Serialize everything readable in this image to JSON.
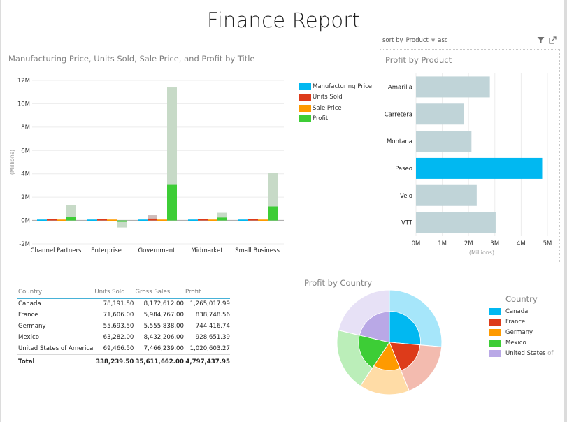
{
  "report": {
    "title": "Finance Report"
  },
  "colors": {
    "manufacturing_price": "#01B8F1",
    "units_sold": "#DD3B1A",
    "sale_price": "#FE9A00",
    "profit": "#3DCD36",
    "usa": "#B9A8E6",
    "highlight_bg_profit": "#C7DAC7",
    "highlight_bg_units": "#C9B4B1",
    "product_bar": "#C0D4D8",
    "product_selected": "#01B8F1"
  },
  "sort_bar": {
    "prefix": "sort by",
    "field": "Product",
    "order": "asc"
  },
  "icons": {
    "filter": "filter-icon",
    "focus": "focus-mode-icon"
  },
  "table": {
    "columns": [
      "Country",
      "Units Sold",
      "Gross Sales",
      "Profit"
    ],
    "rows": [
      [
        "Canada",
        "78,191.50",
        "8,172,612.00",
        "1,265,017.99"
      ],
      [
        "France",
        "71,606.00",
        "5,984,767.00",
        "838,748.56"
      ],
      [
        "Germany",
        "55,693.50",
        "5,555,838.00",
        "744,416.74"
      ],
      [
        "Mexico",
        "63,282.00",
        "8,432,206.00",
        "928,651.39"
      ],
      [
        "United States of America",
        "69,466.50",
        "7,466,239.00",
        "1,020,603.27"
      ]
    ],
    "total": [
      "Total",
      "338,239.50",
      "35,611,662.00",
      "4,797,437.95"
    ]
  },
  "chart_data": [
    {
      "id": "by-title",
      "type": "bar",
      "title": "Manufacturing Price, Units Sold, Sale Price, and Profit by Title",
      "xlabel": "",
      "ylabel": "(Millions)",
      "ylim": [
        -2,
        12
      ],
      "yticks": [
        -2,
        0,
        2,
        4,
        6,
        8,
        10,
        12
      ],
      "ytick_suffix": "M",
      "grid": true,
      "legend": "right",
      "categories": [
        "Channel Partners",
        "Enterprise",
        "Government",
        "Midmarket",
        "Small Business"
      ],
      "series": [
        {
          "name": "Manufacturing Price",
          "color_key": "manufacturing_price",
          "values": [
            0.08,
            0.08,
            0.08,
            0.08,
            0.08
          ],
          "totals": [
            0.08,
            0.08,
            0.08,
            0.08,
            0.08
          ]
        },
        {
          "name": "Units Sold",
          "color_key": "units_sold",
          "values": [
            0.12,
            0.12,
            0.16,
            0.12,
            0.12
          ],
          "totals": [
            0.12,
            0.12,
            0.45,
            0.12,
            0.12
          ]
        },
        {
          "name": "Sale Price",
          "color_key": "sale_price",
          "values": [
            0.08,
            0.08,
            0.08,
            0.08,
            0.08
          ],
          "totals": [
            0.08,
            0.08,
            0.08,
            0.08,
            0.08
          ]
        },
        {
          "name": "Profit",
          "color_key": "profit",
          "values": [
            0.3,
            -0.06,
            3.05,
            0.25,
            1.2
          ],
          "totals": [
            1.3,
            -0.6,
            11.4,
            0.66,
            4.1
          ]
        }
      ]
    },
    {
      "id": "by-product",
      "type": "bar",
      "orientation": "horizontal",
      "title": "Profit by Product",
      "xlabel": "(Millions)",
      "ylabel": "",
      "xlim": [
        0,
        5
      ],
      "xticks": [
        0,
        1,
        2,
        3,
        4,
        5
      ],
      "xtick_suffix": "M",
      "grid": true,
      "categories": [
        "Amarilla",
        "Carretera",
        "Montana",
        "Paseo",
        "Velo",
        "VTT"
      ],
      "values": [
        2.81,
        1.83,
        2.11,
        4.8,
        2.31,
        3.03
      ],
      "selected": "Paseo"
    },
    {
      "id": "by-country",
      "type": "pie",
      "variant": "nested-donut",
      "title": "Profit by Country",
      "legend_title": "Country",
      "legend": "right",
      "categories": [
        "Canada",
        "France",
        "Germany",
        "Mexico",
        "United States of America"
      ],
      "legend_labels": [
        "Canada",
        "France",
        "Germany",
        "Mexico",
        "United States of"
      ],
      "color_keys": [
        "manufacturing_price",
        "units_sold",
        "sale_price",
        "profit",
        "usa"
      ],
      "values": [
        1.265,
        0.839,
        0.744,
        0.929,
        1.021
      ],
      "inner_values": [
        0.261,
        0.177,
        0.212,
        0.205,
        0.187
      ]
    }
  ]
}
